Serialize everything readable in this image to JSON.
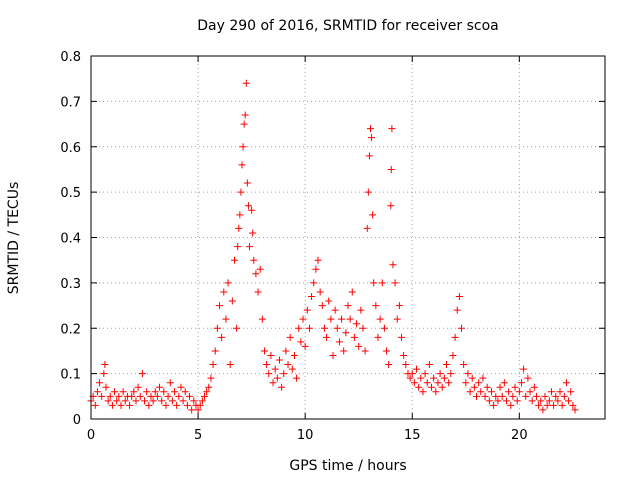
{
  "chart_data": {
    "type": "scatter",
    "title": "Day 290 of 2016, SRMTID for receiver scoa",
    "xlabel": "GPS time / hours",
    "ylabel": "SRMTID / TECUs",
    "xlim": [
      0,
      24
    ],
    "ylim": [
      0,
      0.8
    ],
    "xticks": [
      0,
      5,
      10,
      15,
      20
    ],
    "xtick_labels": [
      "0",
      "5",
      "10",
      "15",
      "20"
    ],
    "yticks": [
      0,
      0.1,
      0.2,
      0.3,
      0.4,
      0.5,
      0.6,
      0.7,
      0.8
    ],
    "ytick_labels": [
      "0",
      "0.1",
      "0.2",
      "0.3",
      "0.4",
      "0.5",
      "0.6",
      "0.7",
      "0.8"
    ],
    "grid": true,
    "marker": "+",
    "color": "#ff0000",
    "series": [
      {
        "name": "SRMTID",
        "points": [
          [
            0.0,
            0.04
          ],
          [
            0.1,
            0.05
          ],
          [
            0.2,
            0.03
          ],
          [
            0.3,
            0.06
          ],
          [
            0.4,
            0.08
          ],
          [
            0.5,
            0.05
          ],
          [
            0.6,
            0.1
          ],
          [
            0.65,
            0.12
          ],
          [
            0.7,
            0.07
          ],
          [
            0.8,
            0.04
          ],
          [
            0.9,
            0.05
          ],
          [
            1.0,
            0.03
          ],
          [
            1.1,
            0.06
          ],
          [
            1.2,
            0.04
          ],
          [
            1.3,
            0.05
          ],
          [
            1.4,
            0.03
          ],
          [
            1.5,
            0.06
          ],
          [
            1.6,
            0.04
          ],
          [
            1.7,
            0.05
          ],
          [
            1.8,
            0.03
          ],
          [
            1.9,
            0.05
          ],
          [
            2.0,
            0.06
          ],
          [
            2.1,
            0.04
          ],
          [
            2.2,
            0.07
          ],
          [
            2.3,
            0.05
          ],
          [
            2.4,
            0.1
          ],
          [
            2.5,
            0.04
          ],
          [
            2.6,
            0.06
          ],
          [
            2.7,
            0.03
          ],
          [
            2.8,
            0.05
          ],
          [
            2.9,
            0.04
          ],
          [
            3.0,
            0.06
          ],
          [
            3.1,
            0.05
          ],
          [
            3.2,
            0.07
          ],
          [
            3.3,
            0.04
          ],
          [
            3.4,
            0.06
          ],
          [
            3.5,
            0.03
          ],
          [
            3.6,
            0.05
          ],
          [
            3.7,
            0.08
          ],
          [
            3.8,
            0.04
          ],
          [
            3.9,
            0.06
          ],
          [
            4.0,
            0.03
          ],
          [
            4.1,
            0.05
          ],
          [
            4.2,
            0.07
          ],
          [
            4.3,
            0.04
          ],
          [
            4.4,
            0.06
          ],
          [
            4.5,
            0.03
          ],
          [
            4.6,
            0.05
          ],
          [
            4.7,
            0.02
          ],
          [
            4.8,
            0.04
          ],
          [
            4.9,
            0.03
          ],
          [
            5.0,
            0.02
          ],
          [
            5.1,
            0.03
          ],
          [
            5.2,
            0.04
          ],
          [
            5.3,
            0.05
          ],
          [
            5.4,
            0.06
          ],
          [
            5.5,
            0.07
          ],
          [
            5.6,
            0.09
          ],
          [
            5.7,
            0.12
          ],
          [
            5.8,
            0.15
          ],
          [
            5.9,
            0.2
          ],
          [
            6.0,
            0.25
          ],
          [
            6.1,
            0.18
          ],
          [
            6.2,
            0.28
          ],
          [
            6.3,
            0.22
          ],
          [
            6.4,
            0.3
          ],
          [
            6.5,
            0.12
          ],
          [
            6.6,
            0.26
          ],
          [
            6.7,
            0.35
          ],
          [
            6.8,
            0.2
          ],
          [
            6.85,
            0.38
          ],
          [
            6.9,
            0.42
          ],
          [
            6.95,
            0.45
          ],
          [
            7.0,
            0.5
          ],
          [
            7.05,
            0.56
          ],
          [
            7.1,
            0.6
          ],
          [
            7.15,
            0.65
          ],
          [
            7.2,
            0.67
          ],
          [
            7.25,
            0.74
          ],
          [
            7.3,
            0.52
          ],
          [
            7.35,
            0.47
          ],
          [
            7.4,
            0.38
          ],
          [
            7.5,
            0.46
          ],
          [
            7.55,
            0.41
          ],
          [
            7.6,
            0.35
          ],
          [
            7.7,
            0.32
          ],
          [
            7.8,
            0.28
          ],
          [
            7.9,
            0.33
          ],
          [
            8.0,
            0.22
          ],
          [
            8.1,
            0.15
          ],
          [
            8.2,
            0.12
          ],
          [
            8.3,
            0.1
          ],
          [
            8.4,
            0.14
          ],
          [
            8.5,
            0.08
          ],
          [
            8.6,
            0.11
          ],
          [
            8.7,
            0.09
          ],
          [
            8.8,
            0.13
          ],
          [
            8.9,
            0.07
          ],
          [
            9.0,
            0.1
          ],
          [
            9.1,
            0.15
          ],
          [
            9.2,
            0.12
          ],
          [
            9.3,
            0.18
          ],
          [
            9.4,
            0.11
          ],
          [
            9.5,
            0.14
          ],
          [
            9.6,
            0.09
          ],
          [
            9.7,
            0.2
          ],
          [
            9.8,
            0.17
          ],
          [
            9.9,
            0.22
          ],
          [
            10.0,
            0.16
          ],
          [
            10.1,
            0.24
          ],
          [
            10.2,
            0.2
          ],
          [
            10.3,
            0.27
          ],
          [
            10.4,
            0.3
          ],
          [
            10.5,
            0.33
          ],
          [
            10.6,
            0.35
          ],
          [
            10.7,
            0.28
          ],
          [
            10.8,
            0.25
          ],
          [
            10.9,
            0.2
          ],
          [
            11.0,
            0.18
          ],
          [
            11.1,
            0.26
          ],
          [
            11.2,
            0.22
          ],
          [
            11.3,
            0.14
          ],
          [
            11.4,
            0.24
          ],
          [
            11.5,
            0.2
          ],
          [
            11.6,
            0.17
          ],
          [
            11.7,
            0.22
          ],
          [
            11.8,
            0.15
          ],
          [
            11.9,
            0.19
          ],
          [
            12.0,
            0.25
          ],
          [
            12.1,
            0.22
          ],
          [
            12.2,
            0.28
          ],
          [
            12.3,
            0.18
          ],
          [
            12.4,
            0.21
          ],
          [
            12.5,
            0.16
          ],
          [
            12.6,
            0.24
          ],
          [
            12.7,
            0.2
          ],
          [
            12.8,
            0.15
          ],
          [
            12.9,
            0.42
          ],
          [
            12.95,
            0.5
          ],
          [
            13.0,
            0.58
          ],
          [
            13.05,
            0.64
          ],
          [
            13.1,
            0.62
          ],
          [
            13.15,
            0.45
          ],
          [
            13.2,
            0.3
          ],
          [
            13.3,
            0.25
          ],
          [
            13.4,
            0.18
          ],
          [
            13.5,
            0.22
          ],
          [
            13.6,
            0.3
          ],
          [
            13.7,
            0.2
          ],
          [
            13.8,
            0.15
          ],
          [
            13.9,
            0.12
          ],
          [
            14.0,
            0.47
          ],
          [
            14.02,
            0.55
          ],
          [
            14.05,
            0.64
          ],
          [
            14.1,
            0.34
          ],
          [
            14.2,
            0.3
          ],
          [
            14.3,
            0.22
          ],
          [
            14.4,
            0.25
          ],
          [
            14.5,
            0.18
          ],
          [
            14.6,
            0.14
          ],
          [
            14.7,
            0.12
          ],
          [
            14.8,
            0.1
          ],
          [
            14.9,
            0.09
          ],
          [
            15.0,
            0.1
          ],
          [
            15.1,
            0.08
          ],
          [
            15.2,
            0.11
          ],
          [
            15.3,
            0.07
          ],
          [
            15.4,
            0.09
          ],
          [
            15.5,
            0.06
          ],
          [
            15.6,
            0.1
          ],
          [
            15.7,
            0.08
          ],
          [
            15.8,
            0.12
          ],
          [
            15.9,
            0.07
          ],
          [
            16.0,
            0.09
          ],
          [
            16.1,
            0.06
          ],
          [
            16.2,
            0.08
          ],
          [
            16.3,
            0.1
          ],
          [
            16.4,
            0.07
          ],
          [
            16.5,
            0.09
          ],
          [
            16.6,
            0.12
          ],
          [
            16.7,
            0.08
          ],
          [
            16.8,
            0.1
          ],
          [
            16.9,
            0.14
          ],
          [
            17.0,
            0.18
          ],
          [
            17.1,
            0.24
          ],
          [
            17.2,
            0.27
          ],
          [
            17.3,
            0.2
          ],
          [
            17.4,
            0.12
          ],
          [
            17.5,
            0.08
          ],
          [
            17.6,
            0.1
          ],
          [
            17.7,
            0.06
          ],
          [
            17.8,
            0.09
          ],
          [
            17.9,
            0.07
          ],
          [
            18.0,
            0.05
          ],
          [
            18.1,
            0.08
          ],
          [
            18.2,
            0.06
          ],
          [
            18.3,
            0.09
          ],
          [
            18.4,
            0.05
          ],
          [
            18.5,
            0.07
          ],
          [
            18.6,
            0.04
          ],
          [
            18.7,
            0.06
          ],
          [
            18.8,
            0.03
          ],
          [
            18.9,
            0.05
          ],
          [
            19.0,
            0.04
          ],
          [
            19.1,
            0.07
          ],
          [
            19.2,
            0.05
          ],
          [
            19.3,
            0.08
          ],
          [
            19.4,
            0.04
          ],
          [
            19.5,
            0.06
          ],
          [
            19.6,
            0.03
          ],
          [
            19.7,
            0.05
          ],
          [
            19.8,
            0.07
          ],
          [
            19.9,
            0.04
          ],
          [
            20.0,
            0.06
          ],
          [
            20.1,
            0.08
          ],
          [
            20.2,
            0.11
          ],
          [
            20.3,
            0.05
          ],
          [
            20.4,
            0.09
          ],
          [
            20.5,
            0.06
          ],
          [
            20.6,
            0.04
          ],
          [
            20.7,
            0.07
          ],
          [
            20.8,
            0.05
          ],
          [
            20.9,
            0.03
          ],
          [
            21.0,
            0.04
          ],
          [
            21.1,
            0.02
          ],
          [
            21.2,
            0.05
          ],
          [
            21.3,
            0.03
          ],
          [
            21.4,
            0.04
          ],
          [
            21.5,
            0.06
          ],
          [
            21.6,
            0.03
          ],
          [
            21.7,
            0.05
          ],
          [
            21.8,
            0.04
          ],
          [
            21.9,
            0.06
          ],
          [
            22.0,
            0.03
          ],
          [
            22.1,
            0.05
          ],
          [
            22.2,
            0.08
          ],
          [
            22.3,
            0.04
          ],
          [
            22.4,
            0.06
          ],
          [
            22.5,
            0.03
          ],
          [
            22.6,
            0.02
          ]
        ]
      }
    ]
  }
}
